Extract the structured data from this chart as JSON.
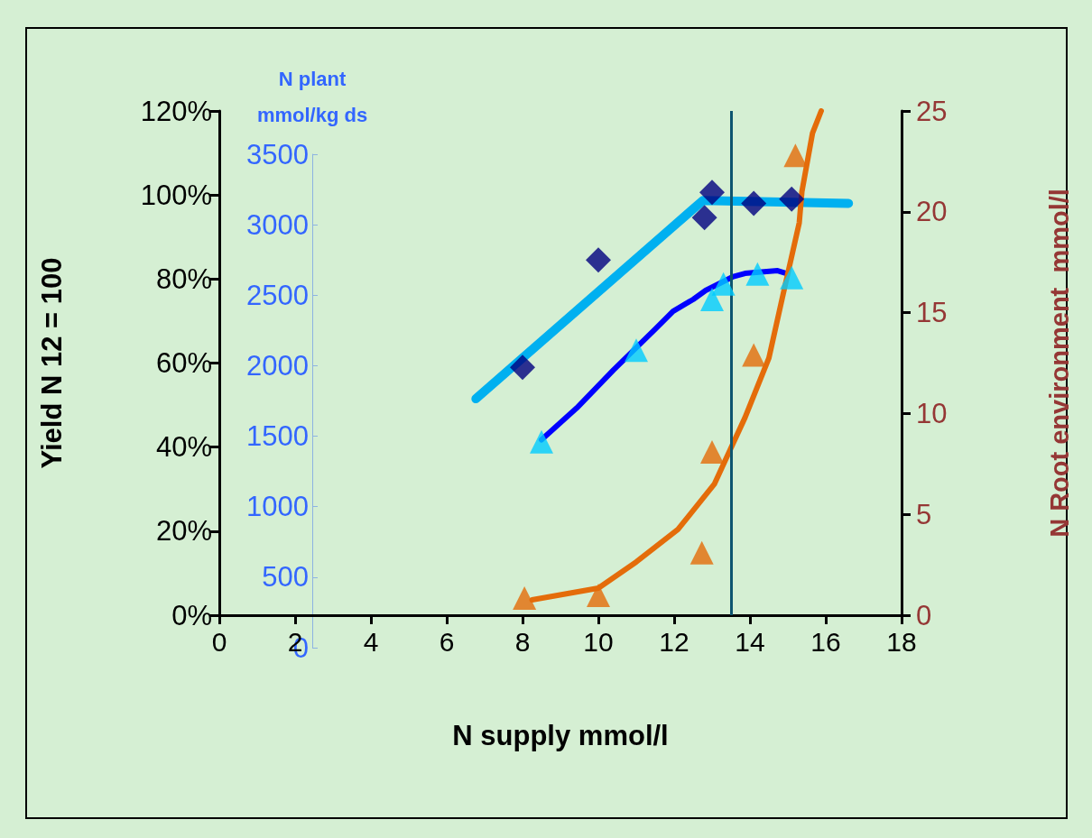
{
  "chart_data": {
    "type": "scatter",
    "xlabel": "N supply mmol/l",
    "ylabel": "Yield N 12 = 100",
    "y2label": "N Root environment  mmol/l",
    "y3label": "N plant\nmmol/kg ds",
    "xlim": [
      0,
      18
    ],
    "xticks": [
      0,
      2,
      4,
      6,
      8,
      10,
      12,
      14,
      16,
      18
    ],
    "ylim": [
      0,
      120
    ],
    "yticks": [
      {
        "value": 0,
        "label": "0%"
      },
      {
        "value": 20,
        "label": "20%"
      },
      {
        "value": 40,
        "label": "40%"
      },
      {
        "value": 60,
        "label": "60%"
      },
      {
        "value": 80,
        "label": "80%"
      },
      {
        "value": 100,
        "label": "100%"
      },
      {
        "value": 120,
        "label": "120%"
      }
    ],
    "y2lim": [
      0,
      25
    ],
    "y2ticks": [
      0,
      5,
      10,
      15,
      20,
      25
    ],
    "y3lim": [
      0,
      3500
    ],
    "y3ticks": [
      0,
      500,
      1000,
      1500,
      2000,
      2500,
      3000,
      3500
    ],
    "grid": false,
    "ref_lines": [
      {
        "axis": "x",
        "value": 13.5,
        "color": "#0e5570",
        "line_style": "solid"
      }
    ],
    "series": [
      {
        "type": "line",
        "marker": "none",
        "color": "#00b0f0",
        "x": [
          6.77,
          12.76,
          16.6
        ],
        "values": [
          51.5,
          98.7,
          98
        ]
      },
      {
        "marker": "diamond",
        "color": "#000080",
        "x": [
          8,
          10,
          12.8,
          13.0,
          14.1,
          15.1
        ],
        "values": [
          59,
          84.5,
          94.6,
          100.6,
          98,
          99
        ]
      },
      {
        "type": "line",
        "marker": "none",
        "axis": "y3",
        "color": "#0000ff",
        "x": [
          8.5,
          9.43,
          10.4,
          11.5,
          11.97,
          12.5,
          12.83,
          13.54,
          13.87,
          14.73,
          14.96
        ],
        "values": [
          1475,
          1700,
          1970,
          2260,
          2386,
          2470,
          2534,
          2630,
          2655,
          2674,
          2655
        ]
      },
      {
        "marker": "triangle",
        "axis": "y3",
        "color": "#00ccff",
        "x": [
          8.5,
          11.0,
          13.0,
          13.3,
          14.2,
          15.1
        ],
        "values": [
          1460,
          2110,
          2470,
          2580,
          2650,
          2625
        ]
      },
      {
        "type": "line",
        "marker": "none",
        "axis": "y2",
        "color": "#e46c0a",
        "x": [
          8.25,
          10.0,
          11.0,
          12.1,
          13.06,
          13.87,
          14.5,
          14.85,
          15.3,
          15.37,
          15.65,
          15.88
        ],
        "values": [
          0.76,
          1.34,
          2.64,
          4.25,
          6.5,
          9.8,
          12.75,
          15.7,
          19.45,
          21,
          23.9,
          25
        ]
      },
      {
        "marker": "triangle",
        "axis": "y2",
        "color": "#e36c09",
        "x": [
          8.05,
          10.0,
          12.73,
          13.0,
          14.1,
          15.2
        ],
        "values": [
          0.85,
          0.98,
          3.1,
          8.1,
          12.9,
          22.8
        ]
      }
    ]
  }
}
